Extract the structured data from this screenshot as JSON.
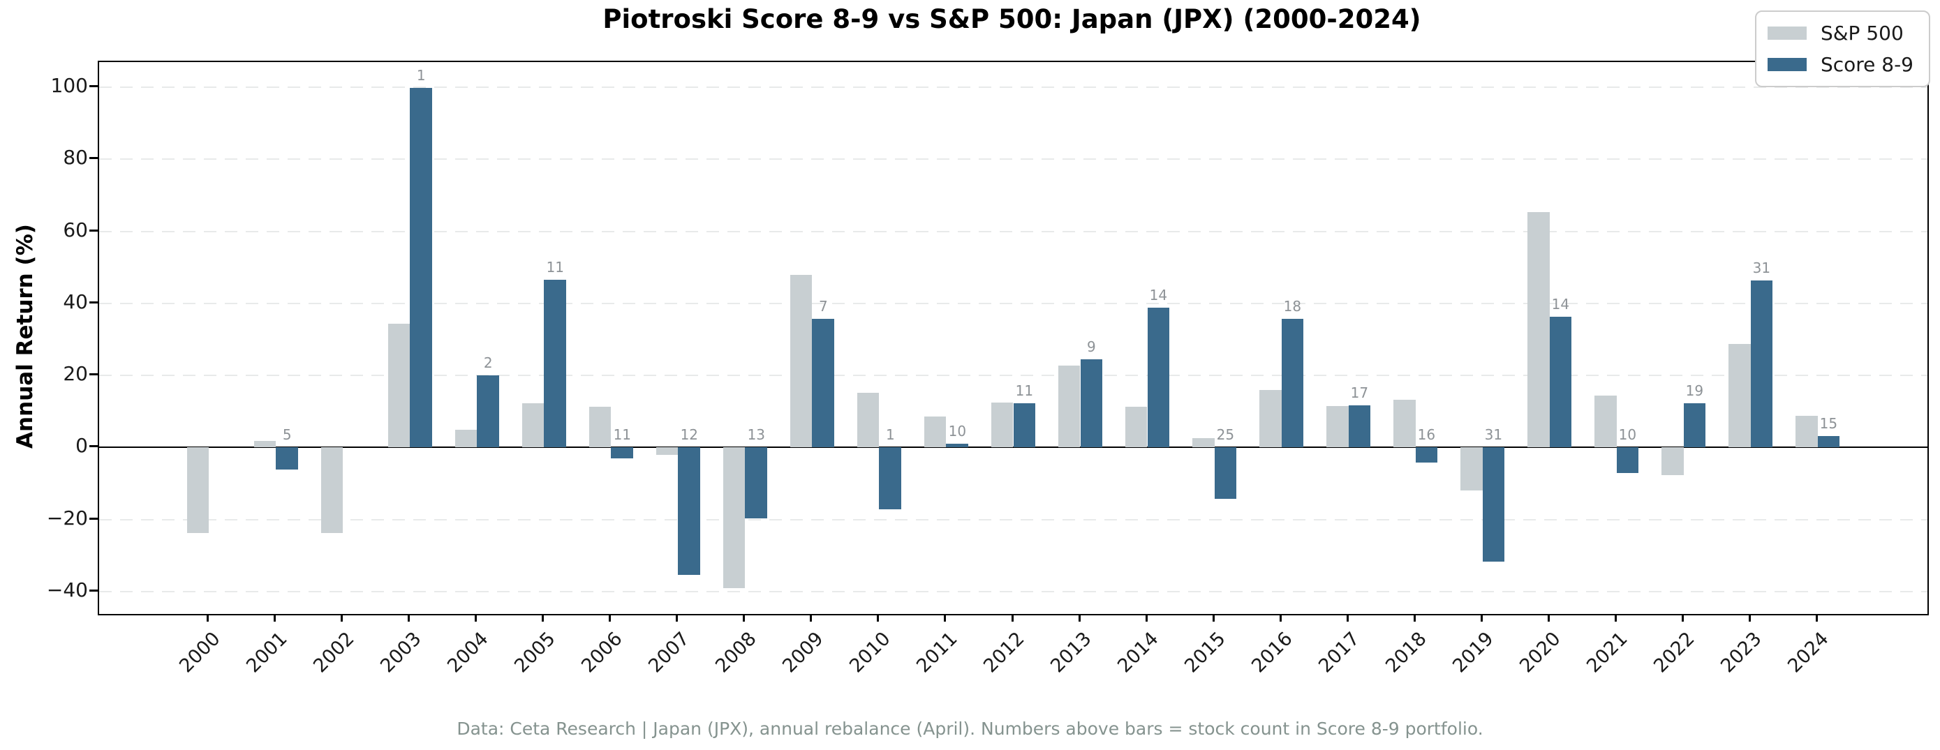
{
  "header": {
    "title": "Piotroski Score 8-9 vs S&P 500: Japan (JPX) (2000-2024)"
  },
  "footer": {
    "note": "Data: Ceta Research | Japan (JPX), annual rebalance (April). Numbers above bars = stock count in Score 8-9 portfolio."
  },
  "chart_data": {
    "type": "bar",
    "title": "Piotroski Score 8-9 vs S&P 500: Japan (JPX) (2000-2024)",
    "ylabel": "Annual Return (%)",
    "xlabel": "",
    "categories": [
      "2000",
      "2001",
      "2002",
      "2003",
      "2004",
      "2005",
      "2006",
      "2007",
      "2008",
      "2009",
      "2010",
      "2011",
      "2012",
      "2013",
      "2014",
      "2015",
      "2016",
      "2017",
      "2018",
      "2019",
      "2020",
      "2021",
      "2022",
      "2023",
      "2024"
    ],
    "series": [
      {
        "name": "S&P 500",
        "color": "#c8cfd2",
        "values": [
          -23.8,
          1.8,
          -23.8,
          34.3,
          4.9,
          12.3,
          11.3,
          -2.1,
          -39.1,
          48.0,
          15.1,
          8.7,
          12.4,
          22.8,
          11.3,
          2.6,
          15.9,
          11.6,
          13.2,
          -11.9,
          65.4,
          14.5,
          -7.7,
          28.8,
          8.8
        ]
      },
      {
        "name": "Score 8-9",
        "color": "#3a6a8c",
        "values": [
          null,
          -6.2,
          null,
          99.8,
          20.0,
          46.6,
          -3.1,
          -35.4,
          -19.6,
          35.7,
          -17.2,
          1.0,
          12.2,
          24.4,
          38.8,
          -14.2,
          35.7,
          11.8,
          -4.1,
          -31.6,
          36.3,
          -7.0,
          12.3,
          46.3,
          3.2
        ]
      }
    ],
    "bar_count_labels": {
      "meaning": "stock count in Score 8-9 portfolio, printed above each year's bars",
      "values": [
        null,
        5,
        null,
        1,
        2,
        11,
        11,
        12,
        13,
        7,
        1,
        10,
        11,
        9,
        14,
        25,
        18,
        17,
        16,
        31,
        14,
        10,
        19,
        31,
        15
      ]
    },
    "yticks": [
      -40,
      -20,
      0,
      20,
      40,
      60,
      80,
      100
    ],
    "ylim": [
      -46.2,
      107
    ],
    "grid": "horizontal dashed",
    "zero_line": true,
    "legend_position": "upper right"
  },
  "colors": {
    "sp500_bar": "#c8cfd2",
    "score_bar": "#3a6a8c",
    "count_label_text": "#8d9296",
    "footer_text": "#85938f",
    "gridline": "#e8eaea",
    "axis_spine": "#000000",
    "tick_label_text": "#1a1a1a"
  }
}
